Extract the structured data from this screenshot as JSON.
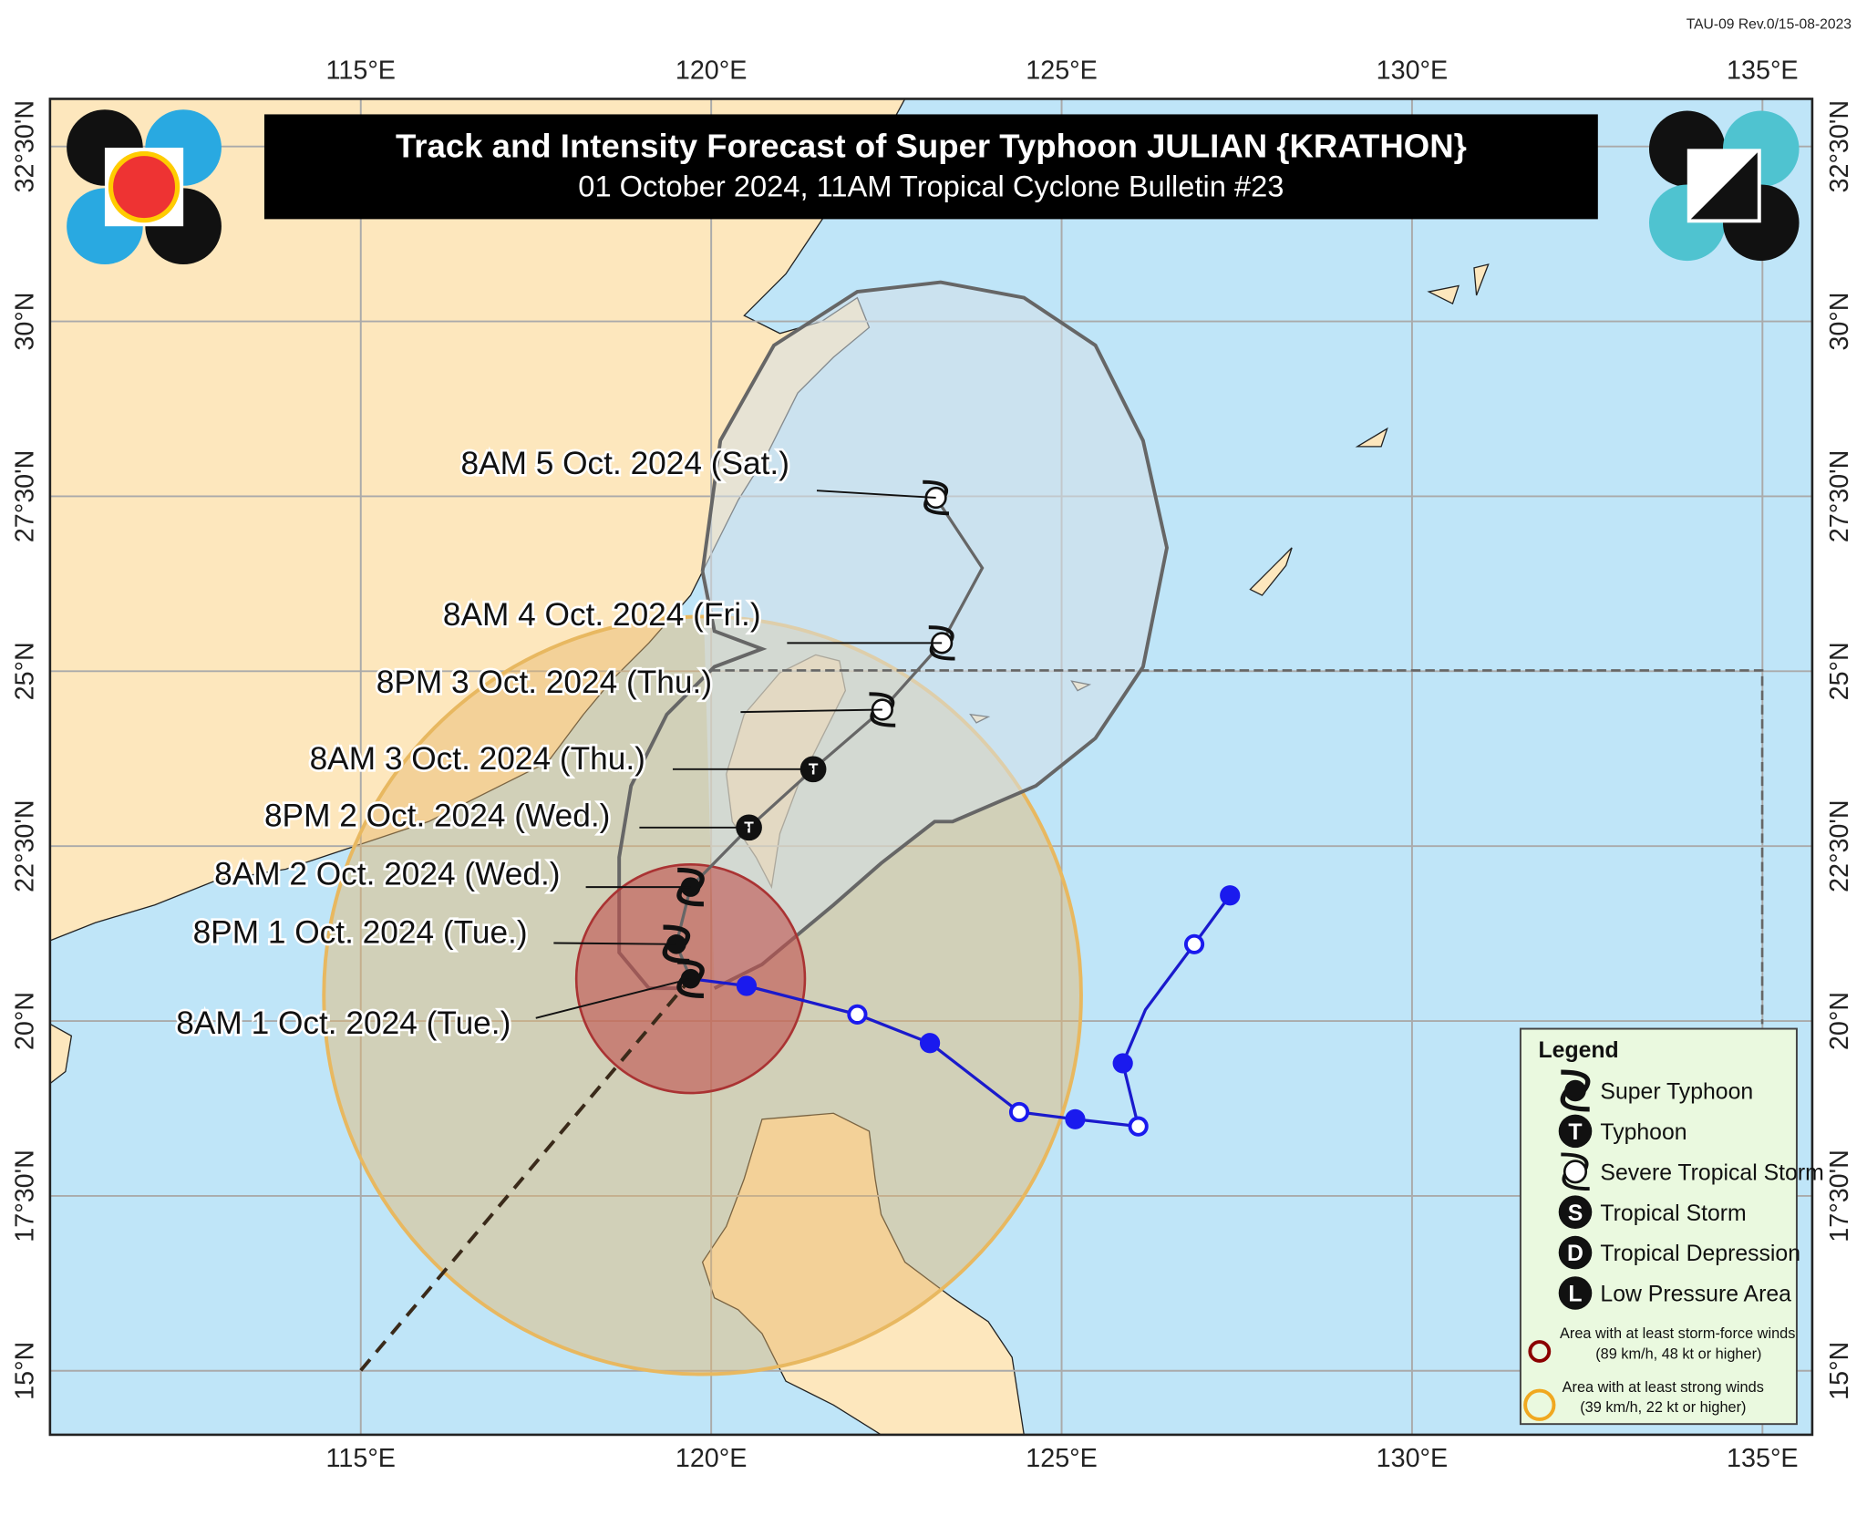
{
  "header": {
    "code": "TAU-09 Rev.0/15-08-2023",
    "title": "Track and Intensity Forecast of Super Typhoon JULIAN {KRATHON}",
    "subtitle": "01 October 2024, 11AM Tropical Cyclone Bulletin #23"
  },
  "axes": {
    "longitudes": [
      "115°E",
      "120°E",
      "125°E",
      "130°E",
      "135°E"
    ],
    "latitudes": [
      "32°30'N",
      "30°N",
      "27°30'N",
      "25°N",
      "22°30'N",
      "20°N",
      "17°30'N",
      "15°N"
    ]
  },
  "forecast": [
    {
      "label": "8AM 1 Oct. 2024 (Tue.)",
      "category": "Super Typhoon"
    },
    {
      "label": "8PM 1 Oct. 2024 (Tue.)",
      "category": "Super Typhoon"
    },
    {
      "label": "8AM 2 Oct. 2024 (Wed.)",
      "category": "Super Typhoon"
    },
    {
      "label": "8PM 2 Oct. 2024 (Wed.)",
      "category": "Typhoon"
    },
    {
      "label": "8AM 3 Oct. 2024 (Thu.)",
      "category": "Typhoon"
    },
    {
      "label": "8PM 3 Oct. 2024 (Thu.)",
      "category": "Severe Tropical Storm"
    },
    {
      "label": "8AM 4 Oct. 2024 (Fri.)",
      "category": "Severe Tropical Storm"
    },
    {
      "label": "8AM 5 Oct. 2024 (Sat.)",
      "category": "Severe Tropical Storm"
    }
  ],
  "legend": {
    "title": "Legend",
    "items": [
      {
        "symbol": "",
        "label": "Super Typhoon"
      },
      {
        "symbol": "T",
        "label": "Typhoon"
      },
      {
        "symbol": "",
        "label": "Severe Tropical Storm"
      },
      {
        "symbol": "S",
        "label": "Tropical Storm"
      },
      {
        "symbol": "D",
        "label": "Tropical Depression"
      },
      {
        "symbol": "L",
        "label": "Low Pressure Area"
      }
    ],
    "areas": [
      {
        "line1": "Area with at least storm-force winds",
        "line2": "(89 km/h, 48 kt or higher)"
      },
      {
        "line1": "Area with at least strong winds",
        "line2": "(39 km/h, 22 kt or higher)"
      }
    ]
  }
}
